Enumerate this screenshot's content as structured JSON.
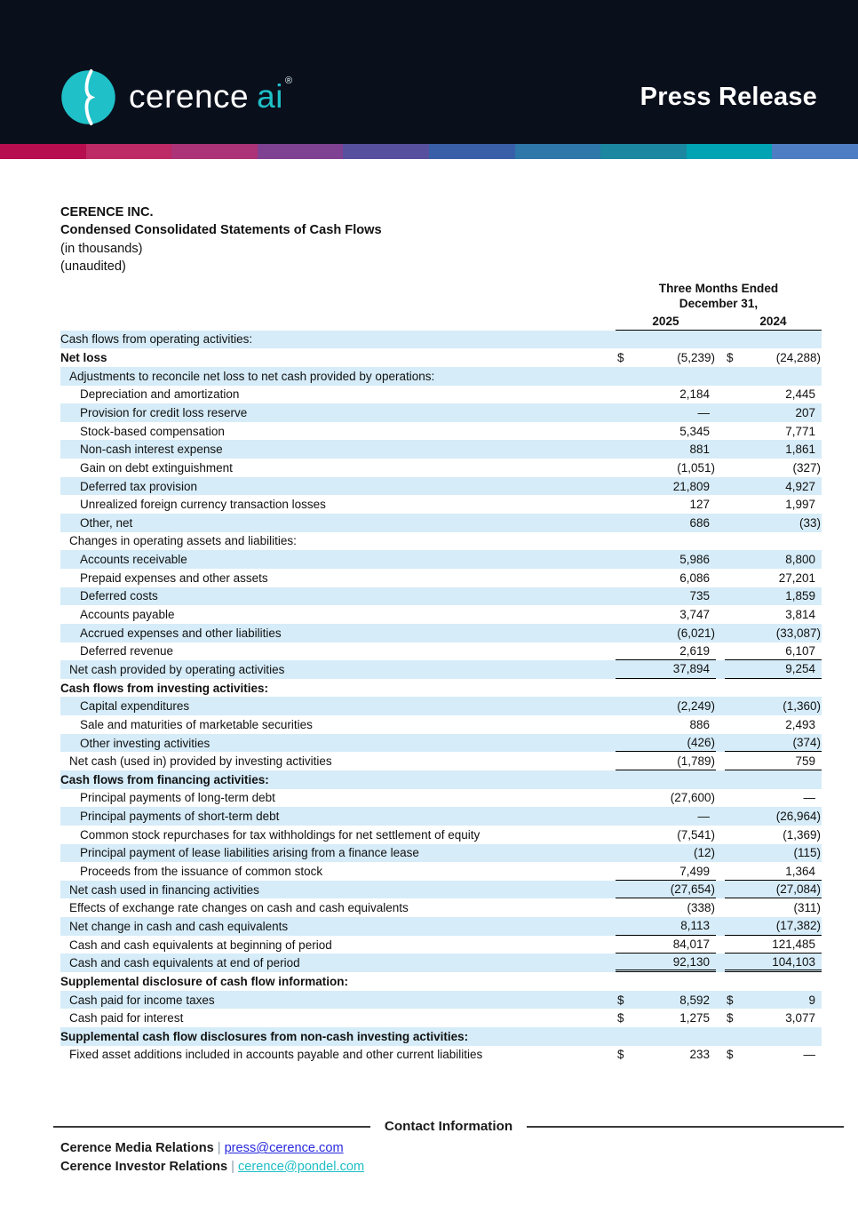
{
  "banner": {
    "brand": {
      "wordmark": "cerence",
      "suffix": "ai",
      "registered": "®"
    },
    "title": "Press Release"
  },
  "colors": {
    "banner_bg": "#0a0f1c",
    "brand_teal": "#1fc0c7",
    "row_shade": "#d6ecf8",
    "link_blue": "#2828dd",
    "link_teal": "#1dbdc6"
  },
  "gradient_colors": [
    "#b60e4e",
    "#bd2a66",
    "#ac3377",
    "#7f4192",
    "#56509f",
    "#3a5fa9",
    "#2e77a9",
    "#1b87a0",
    "#00a3b4",
    "#4f7dc3"
  ],
  "doc_header": {
    "company": "CERENCE INC.",
    "statement": "Condensed Consolidated Statements of Cash Flows",
    "note1": "(in thousands)",
    "note2": "(unaudited)"
  },
  "table": {
    "period_line1": "Three Months Ended",
    "period_line2": "December 31,",
    "columns": [
      "2025",
      "2024"
    ],
    "rows": [
      {
        "label": "Cash flows from operating activities:",
        "indent": 0,
        "bold": false,
        "shaded": true,
        "d1": "",
        "v1": "",
        "d2": "",
        "v2": "",
        "underline": "none"
      },
      {
        "label": "Net loss",
        "indent": 0,
        "bold": true,
        "shaded": false,
        "d1": "$",
        "v1": "(5,239)",
        "d2": "$",
        "v2": "(24,288)",
        "underline": "none"
      },
      {
        "label": "Adjustments to reconcile net loss to net cash provided by operations:",
        "indent": 1,
        "bold": false,
        "shaded": true,
        "d1": "",
        "v1": "",
        "d2": "",
        "v2": "",
        "underline": "none"
      },
      {
        "label": "Depreciation and amortization",
        "indent": 2,
        "bold": false,
        "shaded": false,
        "d1": "",
        "v1": "2,184",
        "d2": "",
        "v2": "2,445",
        "underline": "none"
      },
      {
        "label": "Provision for credit loss reserve",
        "indent": 2,
        "bold": false,
        "shaded": true,
        "d1": "",
        "v1": "—",
        "d2": "",
        "v2": "207",
        "underline": "none"
      },
      {
        "label": "Stock-based compensation",
        "indent": 2,
        "bold": false,
        "shaded": false,
        "d1": "",
        "v1": "5,345",
        "d2": "",
        "v2": "7,771",
        "underline": "none"
      },
      {
        "label": "Non-cash interest expense",
        "indent": 2,
        "bold": false,
        "shaded": true,
        "d1": "",
        "v1": "881",
        "d2": "",
        "v2": "1,861",
        "underline": "none"
      },
      {
        "label": "Gain on debt extinguishment",
        "indent": 2,
        "bold": false,
        "shaded": false,
        "d1": "",
        "v1": "(1,051)",
        "d2": "",
        "v2": "(327)",
        "underline": "none"
      },
      {
        "label": "Deferred tax provision",
        "indent": 2,
        "bold": false,
        "shaded": true,
        "d1": "",
        "v1": "21,809",
        "d2": "",
        "v2": "4,927",
        "underline": "none"
      },
      {
        "label": "Unrealized foreign currency transaction losses",
        "indent": 2,
        "bold": false,
        "shaded": false,
        "d1": "",
        "v1": "127",
        "d2": "",
        "v2": "1,997",
        "underline": "none"
      },
      {
        "label": "Other, net",
        "indent": 2,
        "bold": false,
        "shaded": true,
        "d1": "",
        "v1": "686",
        "d2": "",
        "v2": "(33)",
        "underline": "none"
      },
      {
        "label": "Changes in operating assets and liabilities:",
        "indent": 1,
        "bold": false,
        "shaded": false,
        "d1": "",
        "v1": "",
        "d2": "",
        "v2": "",
        "underline": "none"
      },
      {
        "label": "Accounts receivable",
        "indent": 2,
        "bold": false,
        "shaded": true,
        "d1": "",
        "v1": "5,986",
        "d2": "",
        "v2": "8,800",
        "underline": "none"
      },
      {
        "label": "Prepaid expenses and other assets",
        "indent": 2,
        "bold": false,
        "shaded": false,
        "d1": "",
        "v1": "6,086",
        "d2": "",
        "v2": "27,201",
        "underline": "none"
      },
      {
        "label": "Deferred costs",
        "indent": 2,
        "bold": false,
        "shaded": true,
        "d1": "",
        "v1": "735",
        "d2": "",
        "v2": "1,859",
        "underline": "none"
      },
      {
        "label": "Accounts payable",
        "indent": 2,
        "bold": false,
        "shaded": false,
        "d1": "",
        "v1": "3,747",
        "d2": "",
        "v2": "3,814",
        "underline": "none"
      },
      {
        "label": "Accrued expenses and other liabilities",
        "indent": 2,
        "bold": false,
        "shaded": true,
        "d1": "",
        "v1": "(6,021)",
        "d2": "",
        "v2": "(33,087)",
        "underline": "none"
      },
      {
        "label": "Deferred revenue",
        "indent": 2,
        "bold": false,
        "shaded": false,
        "d1": "",
        "v1": "2,619",
        "d2": "",
        "v2": "6,107",
        "underline": "single"
      },
      {
        "label": "Net cash provided by operating activities",
        "indent": 1,
        "bold": false,
        "shaded": true,
        "d1": "",
        "v1": "37,894",
        "d2": "",
        "v2": "9,254",
        "underline": "single"
      },
      {
        "label": "Cash flows from investing activities:",
        "indent": 0,
        "bold": true,
        "shaded": false,
        "d1": "",
        "v1": "",
        "d2": "",
        "v2": "",
        "underline": "none"
      },
      {
        "label": "Capital expenditures",
        "indent": 2,
        "bold": false,
        "shaded": true,
        "d1": "",
        "v1": "(2,249)",
        "d2": "",
        "v2": "(1,360)",
        "underline": "none"
      },
      {
        "label": "Sale and maturities of marketable securities",
        "indent": 2,
        "bold": false,
        "shaded": false,
        "d1": "",
        "v1": "886",
        "d2": "",
        "v2": "2,493",
        "underline": "none"
      },
      {
        "label": "Other investing activities",
        "indent": 2,
        "bold": false,
        "shaded": true,
        "d1": "",
        "v1": "(426)",
        "d2": "",
        "v2": "(374)",
        "underline": "single"
      },
      {
        "label": "Net cash (used in) provided by investing activities",
        "indent": 1,
        "bold": false,
        "shaded": false,
        "d1": "",
        "v1": "(1,789)",
        "d2": "",
        "v2": "759",
        "underline": "single"
      },
      {
        "label": "Cash flows from financing activities:",
        "indent": 0,
        "bold": true,
        "shaded": true,
        "d1": "",
        "v1": "",
        "d2": "",
        "v2": "",
        "underline": "none"
      },
      {
        "label": "Principal payments of long-term debt",
        "indent": 2,
        "bold": false,
        "shaded": false,
        "d1": "",
        "v1": "(27,600)",
        "d2": "",
        "v2": "—",
        "underline": "none"
      },
      {
        "label": "Principal payments of short-term debt",
        "indent": 2,
        "bold": false,
        "shaded": true,
        "d1": "",
        "v1": "—",
        "d2": "",
        "v2": "(26,964)",
        "underline": "none"
      },
      {
        "label": "Common stock repurchases for tax withholdings for net settlement of equity",
        "indent": 2,
        "bold": false,
        "shaded": false,
        "d1": "",
        "v1": "(7,541)",
        "d2": "",
        "v2": "(1,369)",
        "underline": "none"
      },
      {
        "label": "Principal payment of lease liabilities arising from a finance lease",
        "indent": 2,
        "bold": false,
        "shaded": true,
        "d1": "",
        "v1": "(12)",
        "d2": "",
        "v2": "(115)",
        "underline": "none"
      },
      {
        "label": "Proceeds from the issuance of common stock",
        "indent": 2,
        "bold": false,
        "shaded": false,
        "d1": "",
        "v1": "7,499",
        "d2": "",
        "v2": "1,364",
        "underline": "single"
      },
      {
        "label": "Net cash used in financing activities",
        "indent": 1,
        "bold": false,
        "shaded": true,
        "d1": "",
        "v1": "(27,654)",
        "d2": "",
        "v2": "(27,084)",
        "underline": "single"
      },
      {
        "label": "Effects of exchange rate changes on cash and cash equivalents",
        "indent": 1,
        "bold": false,
        "shaded": false,
        "d1": "",
        "v1": "(338)",
        "d2": "",
        "v2": "(311)",
        "underline": "none"
      },
      {
        "label": "Net change in cash and cash equivalents",
        "indent": 1,
        "bold": false,
        "shaded": true,
        "d1": "",
        "v1": "8,113",
        "d2": "",
        "v2": "(17,382)",
        "underline": "single"
      },
      {
        "label": "Cash and cash equivalents at beginning of period",
        "indent": 1,
        "bold": false,
        "shaded": false,
        "d1": "",
        "v1": "84,017",
        "d2": "",
        "v2": "121,485",
        "underline": "single"
      },
      {
        "label": "Cash and cash equivalents at end of period",
        "indent": 1,
        "bold": false,
        "shaded": true,
        "d1": "",
        "v1": "92,130",
        "d2": "",
        "v2": "104,103",
        "underline": "double"
      },
      {
        "label": "Supplemental disclosure of cash flow information:",
        "indent": 0,
        "bold": true,
        "shaded": false,
        "d1": "",
        "v1": "",
        "d2": "",
        "v2": "",
        "underline": "none"
      },
      {
        "label": "Cash paid for income taxes",
        "indent": 1,
        "bold": false,
        "shaded": true,
        "d1": "$",
        "v1": "8,592",
        "d2": "$",
        "v2": "9",
        "underline": "none"
      },
      {
        "label": "Cash paid for interest",
        "indent": 1,
        "bold": false,
        "shaded": false,
        "d1": "$",
        "v1": "1,275",
        "d2": "$",
        "v2": "3,077",
        "underline": "none"
      },
      {
        "label": "Supplemental cash flow disclosures from non-cash investing activities:",
        "indent": 0,
        "bold": true,
        "shaded": true,
        "d1": "",
        "v1": "",
        "d2": "",
        "v2": "",
        "underline": "none"
      },
      {
        "label": "Fixed asset additions included in accounts payable and other current liabilities",
        "indent": 1,
        "bold": false,
        "shaded": false,
        "d1": "$",
        "v1": "233",
        "d2": "$",
        "v2": "—",
        "underline": "none"
      }
    ]
  },
  "footer": {
    "heading": "Contact Information",
    "contacts": [
      {
        "name": "Cerence Media Relations",
        "separator": "|",
        "link": "press@cerence.com"
      },
      {
        "name": "Cerence Investor Relations",
        "separator": "|",
        "link": "cerence@pondel.com"
      }
    ]
  }
}
